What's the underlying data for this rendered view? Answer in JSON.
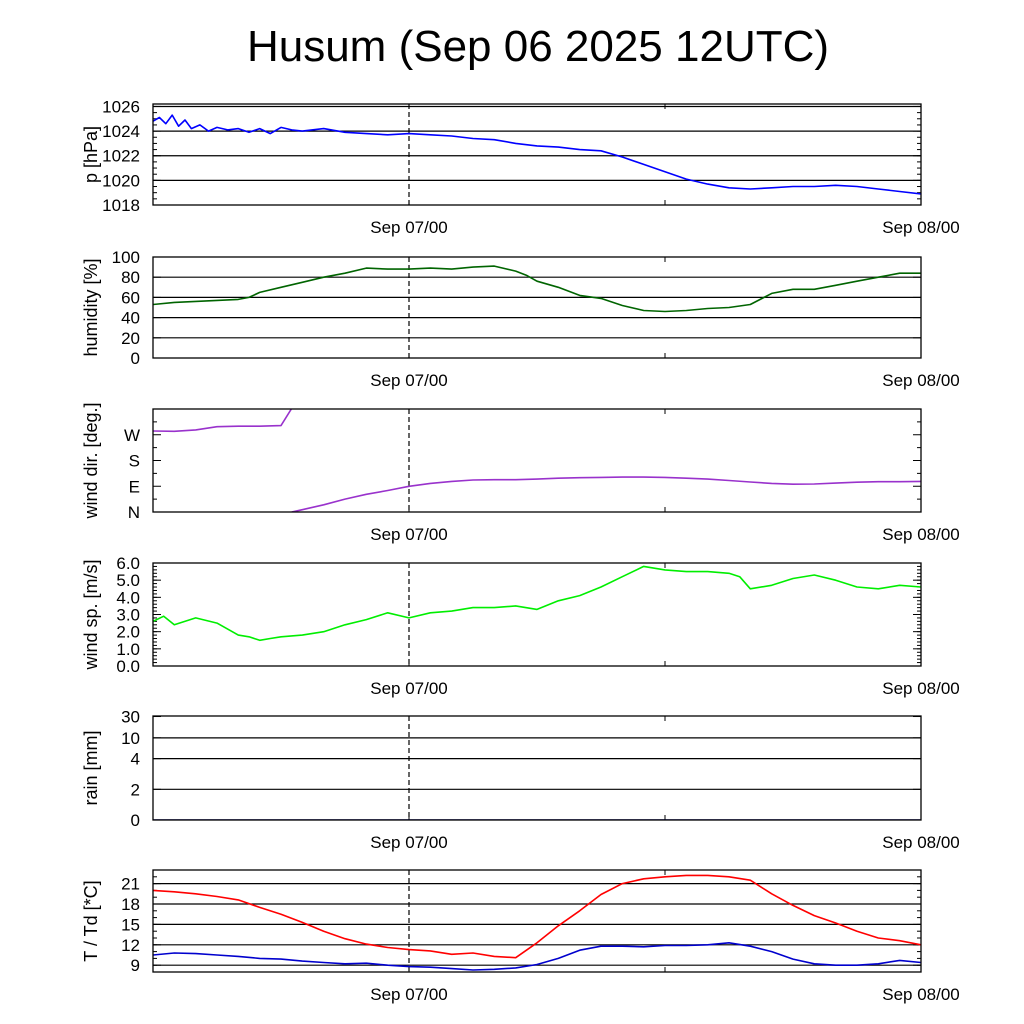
{
  "title": "Husum (Sep 06 2025 12UTC)",
  "x_tick_labels": [
    "Sep 07/00",
    "Sep 08/00"
  ],
  "x_range_hours": [
    0,
    36
  ],
  "x_ticks_hours": [
    12,
    24,
    36
  ],
  "x_ref_line_hours": 12,
  "chart_data": [
    {
      "id": "pressure",
      "type": "line",
      "ylabel": "p [hPa]",
      "ylim": [
        1018,
        1026.2
      ],
      "y_ticks": [
        1018,
        1020,
        1022,
        1024,
        1026
      ],
      "y_tick_labels": [
        "1018",
        "1020",
        "1022",
        "1024",
        "1026"
      ],
      "grid": "horizontal",
      "series": [
        {
          "color": "#0000ff",
          "x": [
            0,
            0.3,
            0.6,
            0.9,
            1.2,
            1.5,
            1.8,
            2.2,
            2.6,
            3.0,
            3.5,
            4.0,
            4.5,
            5.0,
            5.5,
            6.0,
            6.5,
            7.0,
            8.0,
            9.0,
            10.0,
            11.0,
            12.0,
            13.0,
            14.0,
            15.0,
            16.0,
            17.0,
            18.0,
            19.0,
            20.0,
            21.0,
            22.0,
            23.0,
            24.0,
            25.0,
            26.0,
            27.0,
            28.0,
            29.0,
            30.0,
            31.0,
            32.0,
            33.0,
            34.0,
            35.0,
            36.0
          ],
          "values": [
            1024.8,
            1025.1,
            1024.6,
            1025.3,
            1024.4,
            1024.9,
            1024.2,
            1024.5,
            1024.0,
            1024.3,
            1024.1,
            1024.2,
            1023.9,
            1024.2,
            1023.8,
            1024.3,
            1024.1,
            1024.0,
            1024.2,
            1023.9,
            1023.8,
            1023.7,
            1023.8,
            1023.7,
            1023.6,
            1023.4,
            1023.3,
            1023.0,
            1022.8,
            1022.7,
            1022.5,
            1022.4,
            1021.9,
            1021.3,
            1020.7,
            1020.1,
            1019.7,
            1019.4,
            1019.3,
            1019.4,
            1019.5,
            1019.5,
            1019.6,
            1019.5,
            1019.3,
            1019.1,
            1018.9
          ]
        }
      ]
    },
    {
      "id": "humidity",
      "type": "line",
      "ylabel": "humidity [%]",
      "ylim": [
        0,
        100
      ],
      "y_ticks": [
        0,
        20,
        40,
        60,
        80,
        100
      ],
      "y_tick_labels": [
        "0",
        "20",
        "40",
        "60",
        "80",
        "100"
      ],
      "grid": "horizontal",
      "series": [
        {
          "color": "#006400",
          "x": [
            0,
            1,
            2,
            3,
            4,
            4.5,
            5,
            6,
            7,
            8,
            9,
            10,
            11,
            12,
            13,
            14,
            15,
            16,
            17,
            17.5,
            18,
            19,
            20,
            21,
            22,
            23,
            24,
            25,
            26,
            27,
            28,
            29,
            30,
            31,
            32,
            33,
            34,
            35,
            36
          ],
          "values": [
            53,
            55,
            56,
            57,
            58,
            60,
            65,
            70,
            75,
            80,
            84,
            89,
            88,
            88,
            89,
            88,
            90,
            91,
            86,
            82,
            76,
            70,
            62,
            59,
            52,
            47,
            46,
            47,
            49,
            50,
            53,
            64,
            68,
            68,
            72,
            76,
            80,
            84,
            84
          ]
        }
      ]
    },
    {
      "id": "wind_direction",
      "type": "line",
      "ylabel": "wind dir. [deg.]",
      "ylim": [
        0,
        360
      ],
      "y_ticks": [
        0,
        90,
        180,
        270
      ],
      "y_tick_labels": [
        "N",
        "E",
        "S",
        "W"
      ],
      "grid": "none",
      "series": [
        {
          "color": "#9932cc",
          "x": [
            0,
            1,
            2,
            3,
            4,
            5,
            6,
            6.5
          ],
          "values": [
            283,
            282,
            287,
            298,
            300,
            300,
            302,
            362
          ]
        },
        {
          "color": "#9932cc",
          "x": [
            6.5,
            7,
            8,
            9,
            10,
            11,
            12,
            13,
            14,
            15,
            16,
            17,
            18,
            19,
            20,
            21,
            22,
            23,
            24,
            25,
            26,
            27,
            28,
            29,
            30,
            31,
            32,
            33,
            34,
            35,
            36
          ],
          "values": [
            0,
            8,
            25,
            45,
            62,
            75,
            90,
            100,
            107,
            112,
            113,
            113,
            115,
            118,
            120,
            121,
            122,
            122,
            121,
            118,
            115,
            110,
            105,
            100,
            97,
            98,
            101,
            104,
            106,
            106,
            107
          ]
        }
      ]
    },
    {
      "id": "wind_speed",
      "type": "line",
      "ylabel": "wind sp. [m/s]",
      "ylim": [
        0,
        6.0
      ],
      "y_ticks": [
        0,
        1,
        2,
        3,
        4,
        5,
        6
      ],
      "y_tick_labels": [
        "0.0",
        "1.0",
        "2.0",
        "3.0",
        "4.0",
        "5.0",
        "6.0"
      ],
      "grid": "none",
      "series": [
        {
          "color": "#00ee00",
          "x": [
            0,
            0.5,
            1,
            2,
            3,
            4,
            4.5,
            5,
            5.5,
            6,
            7,
            8,
            9,
            10,
            11,
            12,
            13,
            14,
            15,
            16,
            17,
            18,
            19,
            20,
            21,
            22,
            23,
            24,
            25,
            26,
            27,
            27.5,
            28,
            29,
            30,
            31,
            32,
            33,
            34,
            35,
            36
          ],
          "values": [
            2.6,
            2.9,
            2.4,
            2.8,
            2.5,
            1.8,
            1.7,
            1.5,
            1.6,
            1.7,
            1.8,
            2.0,
            2.4,
            2.7,
            3.1,
            2.8,
            3.1,
            3.2,
            3.4,
            3.4,
            3.5,
            3.3,
            3.8,
            4.1,
            4.6,
            5.2,
            5.8,
            5.6,
            5.5,
            5.5,
            5.4,
            5.2,
            4.5,
            4.7,
            5.1,
            5.3,
            5.0,
            4.6,
            4.5,
            4.7,
            4.6
          ]
        }
      ]
    },
    {
      "id": "rain",
      "type": "line",
      "ylabel": "rain [mm]",
      "ylim": [
        0,
        31
      ],
      "y_ticks": [
        0,
        2,
        4,
        10,
        30
      ],
      "y_tick_labels": [
        "0",
        "2",
        "4",
        "10",
        "30"
      ],
      "grid": "horizontal",
      "series": [
        {
          "color": "#000080",
          "x": [
            0,
            36
          ],
          "values": [
            0,
            0
          ]
        }
      ]
    },
    {
      "id": "temperature",
      "type": "line",
      "ylabel": "T / Td [*C]",
      "ylim": [
        8,
        23
      ],
      "y_ticks": [
        9,
        12,
        15,
        18,
        21
      ],
      "y_tick_labels": [
        "9",
        "12",
        "15",
        "18",
        "21"
      ],
      "grid": "horizontal",
      "series": [
        {
          "color": "#ff0000",
          "x": [
            0,
            1,
            2,
            3,
            4,
            5,
            6,
            7,
            8,
            9,
            10,
            11,
            12,
            13,
            14,
            15,
            16,
            17,
            18,
            19,
            20,
            21,
            22,
            23,
            24,
            25,
            26,
            27,
            28,
            29,
            30,
            31,
            32,
            33,
            34,
            35,
            36
          ],
          "values": [
            20.0,
            19.8,
            19.5,
            19.1,
            18.6,
            17.5,
            16.5,
            15.3,
            14.0,
            12.9,
            12.1,
            11.6,
            11.3,
            11.1,
            10.6,
            10.8,
            10.3,
            10.1,
            12.3,
            14.8,
            17.0,
            19.4,
            21.0,
            21.7,
            22.0,
            22.2,
            22.2,
            22.0,
            21.5,
            19.5,
            17.8,
            16.3,
            15.2,
            14.0,
            13.0,
            12.6,
            12.0
          ]
        },
        {
          "color": "#0000cd",
          "x": [
            0,
            1,
            2,
            3,
            4,
            5,
            6,
            7,
            8,
            9,
            10,
            11,
            12,
            13,
            14,
            15,
            16,
            17,
            18,
            19,
            20,
            21,
            22,
            23,
            24,
            25,
            26,
            27,
            28,
            29,
            30,
            31,
            32,
            33,
            34,
            35,
            36
          ],
          "values": [
            10.5,
            10.8,
            10.7,
            10.5,
            10.3,
            10.0,
            9.9,
            9.6,
            9.4,
            9.2,
            9.3,
            9.0,
            8.8,
            8.7,
            8.5,
            8.3,
            8.4,
            8.6,
            9.1,
            10.0,
            11.2,
            11.8,
            11.8,
            11.7,
            11.9,
            11.9,
            12.0,
            12.3,
            11.8,
            11.0,
            9.9,
            9.2,
            9.0,
            9.0,
            9.2,
            9.7,
            9.4
          ]
        }
      ]
    }
  ]
}
